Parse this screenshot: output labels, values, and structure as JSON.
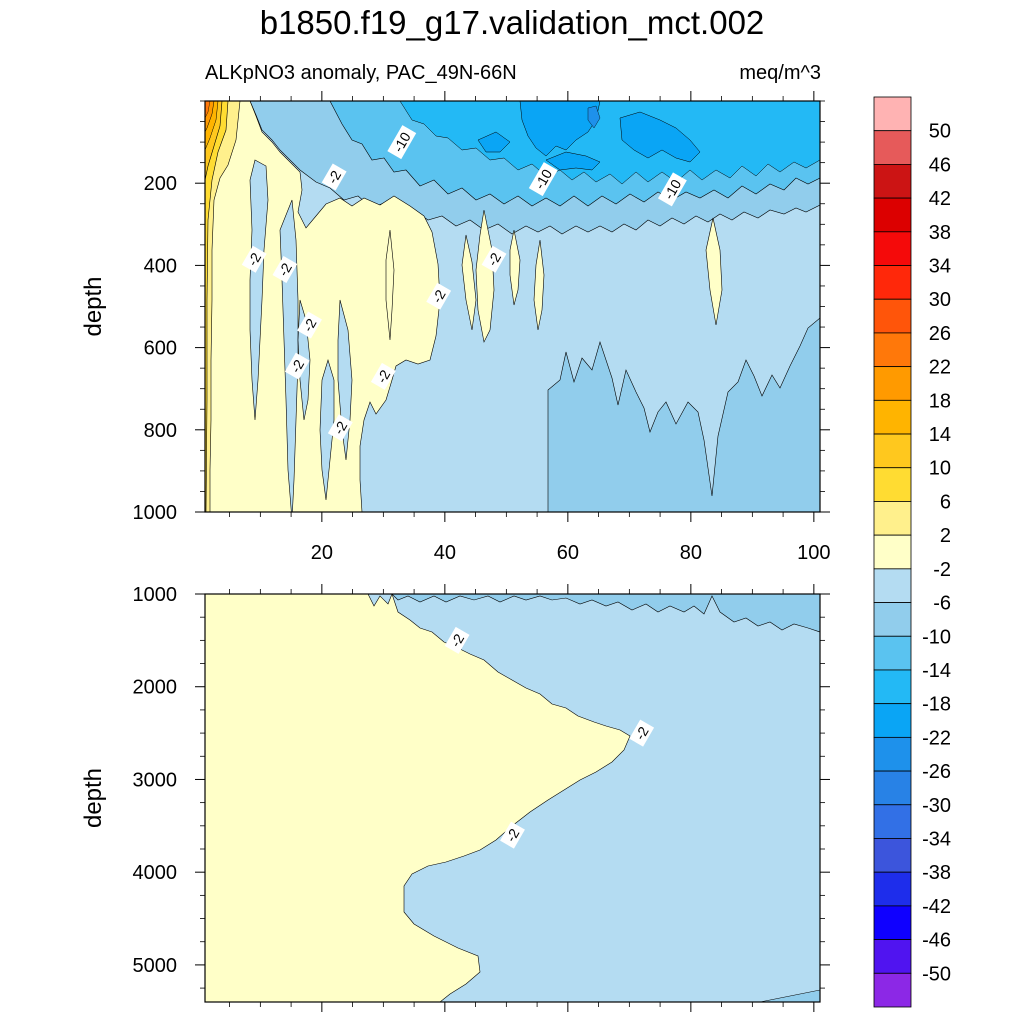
{
  "chart_data": [
    {
      "type": "contour",
      "panel": "upper",
      "title": "b1850.f19_g17.validation_mct.002",
      "subtitle_left": "ALKpNO3 anomaly, PAC_49N-66N",
      "subtitle_right": "meq/m^3",
      "xlabel": "",
      "ylabel": "depth",
      "xlim": [
        1,
        101
      ],
      "ylim": [
        1000,
        0
      ],
      "xticks": [
        20,
        40,
        60,
        80,
        100
      ],
      "xtick_labels": [
        "20",
        "40",
        "60",
        "80",
        "100"
      ],
      "yticks": [
        200,
        400,
        600,
        800,
        1000
      ],
      "ytick_labels": [
        "200",
        "400",
        "600",
        "800",
        "1000"
      ],
      "contour_labels": [
        {
          "text": "-10",
          "x": 33,
          "y": 100
        },
        {
          "text": "-2",
          "x": 22,
          "y": 185
        },
        {
          "text": "-10",
          "x": 56,
          "y": 190
        },
        {
          "text": "-10",
          "x": 77,
          "y": 215
        },
        {
          "text": "-2",
          "x": 9,
          "y": 385
        },
        {
          "text": "-2",
          "x": 14,
          "y": 410
        },
        {
          "text": "-2",
          "x": 48,
          "y": 385
        },
        {
          "text": "-2",
          "x": 39,
          "y": 475
        },
        {
          "text": "-2",
          "x": 18,
          "y": 545
        },
        {
          "text": "-2",
          "x": 16,
          "y": 645
        },
        {
          "text": "-2",
          "x": 30,
          "y": 670
        },
        {
          "text": "-2",
          "x": 23,
          "y": 795
        }
      ]
    },
    {
      "type": "contour",
      "panel": "lower",
      "xlabel": "",
      "ylabel": "depth",
      "xlim": [
        1,
        101
      ],
      "ylim": [
        5400,
        1000
      ],
      "yticks": [
        1000,
        2000,
        3000,
        4000,
        5000
      ],
      "ytick_labels": [
        "1000",
        "2000",
        "3000",
        "4000",
        "5000"
      ],
      "contour_labels": [
        {
          "text": "-2",
          "x": 42,
          "y": 1500
        },
        {
          "text": "-2",
          "x": 72,
          "y": 2500
        },
        {
          "text": "-2",
          "x": 51,
          "y": 3600
        }
      ]
    }
  ],
  "colorbar": {
    "labels": [
      "50",
      "46",
      "42",
      "38",
      "34",
      "30",
      "26",
      "22",
      "18",
      "14",
      "10",
      "6",
      "2",
      "-2",
      "-6",
      "-10",
      "-14",
      "-18",
      "-22",
      "-26",
      "-30",
      "-34",
      "-38",
      "-42",
      "-46",
      "-50"
    ],
    "colors": [
      "#FFB3B3",
      "#E65A5A",
      "#CC1414",
      "#DC0000",
      "#F50A0A",
      "#FF280A",
      "#FF550A",
      "#FF780A",
      "#FF9A00",
      "#FFB400",
      "#FFC81E",
      "#FFDC32",
      "#FFF08C",
      "#FFFFC8",
      "#B4DCF2",
      "#91CDEC",
      "#5AC3F0",
      "#23B9F5",
      "#0AA5F5",
      "#1E91EB",
      "#2882E6",
      "#3270E6",
      "#3C55DC",
      "#1E2DEB",
      "#0F00FF",
      "#5014F0",
      "#8C28E6"
    ]
  }
}
